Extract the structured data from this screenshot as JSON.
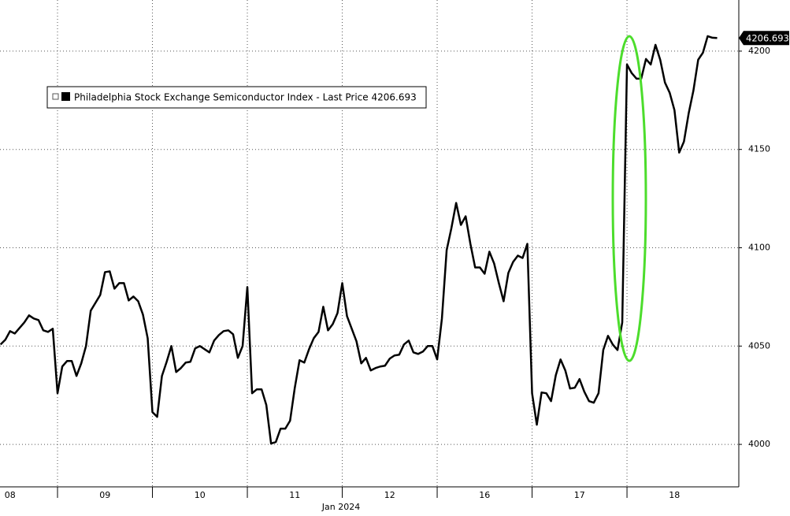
{
  "chart_data": {
    "type": "line",
    "xlabel": "Jan 2024",
    "xlim": [
      0.394,
      8.178
    ],
    "ylim": [
      3978.4,
      4226
    ],
    "xticks": [
      {
        "value": 0.5,
        "label": "08"
      },
      {
        "value": 1.5,
        "label": "09"
      },
      {
        "value": 2.5,
        "label": "10"
      },
      {
        "value": 3.5,
        "label": "11"
      },
      {
        "value": 4.5,
        "label": "12"
      },
      {
        "value": 5.5,
        "label": "16"
      },
      {
        "value": 6.5,
        "label": "17"
      },
      {
        "value": 7.5,
        "label": "18"
      }
    ],
    "xgrid_lines": [
      1,
      2,
      3,
      4,
      5,
      6,
      7
    ],
    "yticks": [
      4000,
      4050,
      4100,
      4150,
      4200
    ],
    "grid": true,
    "legend": "upper left",
    "x": [
      0.4,
      0.45,
      0.5,
      0.55,
      0.6,
      0.65,
      0.7,
      0.75,
      0.8,
      0.85,
      0.9,
      0.95,
      1.0,
      1.05,
      1.1,
      1.15,
      1.2,
      1.25,
      1.3,
      1.35,
      1.4,
      1.45,
      1.5,
      1.55,
      1.6,
      1.65,
      1.7,
      1.75,
      1.8,
      1.85,
      1.9,
      1.95,
      2.0,
      2.05,
      2.1,
      2.15,
      2.2,
      2.25,
      2.3,
      2.35,
      2.4,
      2.45,
      2.5,
      2.55,
      2.6,
      2.65,
      2.7,
      2.75,
      2.8,
      2.85,
      2.9,
      2.95,
      3.0,
      3.05,
      3.1,
      3.15,
      3.2,
      3.25,
      3.3,
      3.35,
      3.4,
      3.45,
      3.5,
      3.55,
      3.6,
      3.65,
      3.7,
      3.75,
      3.8,
      3.85,
      3.9,
      3.95,
      4.0,
      4.05,
      4.1,
      4.15,
      4.2,
      4.25,
      4.3,
      4.35,
      4.4,
      4.45,
      4.5,
      4.55,
      4.6,
      4.65,
      4.7,
      4.75,
      4.8,
      4.85,
      4.9,
      4.95,
      5.0,
      5.05,
      5.1,
      5.15,
      5.2,
      5.25,
      5.3,
      5.35,
      5.4,
      5.45,
      5.5,
      5.55,
      5.6,
      5.65,
      5.7,
      5.75,
      5.8,
      5.85,
      5.9,
      5.95,
      6.0,
      6.05,
      6.1,
      6.15,
      6.2,
      6.25,
      6.3,
      6.35,
      6.4,
      6.45,
      6.5,
      6.55,
      6.6,
      6.65,
      6.7,
      6.75,
      6.8,
      6.85,
      6.9,
      6.95,
      7.0,
      7.05,
      7.1,
      7.15,
      7.2,
      7.25,
      7.3,
      7.35,
      7.4,
      7.45,
      7.5,
      7.55,
      7.6,
      7.65,
      7.7,
      7.75,
      7.8,
      7.85,
      7.9,
      7.95
    ],
    "series": [
      {
        "name": "Philadelphia Stock Exchange Semiconductor Index - Last Price 4206.693",
        "color": "#000000",
        "values": [
          4050.8,
          4053.2,
          4057.6,
          4056.4,
          4059.2,
          4062,
          4065.6,
          4064,
          4063.2,
          4058,
          4057.2,
          4058.8,
          4026,
          4039.6,
          4042.4,
          4042.4,
          4034.8,
          4041.2,
          4050,
          4068,
          4072,
          4076,
          4087.6,
          4088,
          4079.2,
          4082,
          4082,
          4073.2,
          4075.2,
          4072.8,
          4066,
          4054,
          4016.4,
          4014,
          4034.8,
          4042,
          4050,
          4036.8,
          4038.8,
          4041.6,
          4042,
          4048.8,
          4050,
          4048.4,
          4046.8,
          4052.8,
          4055.6,
          4057.6,
          4058,
          4056,
          4044,
          4050,
          4080,
          4026,
          4028,
          4028,
          4020,
          4000.4,
          4001.2,
          4008,
          4008,
          4012,
          4028.8,
          4042.8,
          4041.6,
          4048.4,
          4054,
          4057.2,
          4070,
          4058,
          4061.2,
          4066.8,
          4082,
          4065.2,
          4058.8,
          4052.4,
          4041.2,
          4044,
          4037.6,
          4038.8,
          4039.6,
          4040,
          4043.6,
          4045.2,
          4045.6,
          4050.8,
          4052.8,
          4046.8,
          4046,
          4047.2,
          4050,
          4050,
          4043.2,
          4064,
          4098.8,
          4110,
          4122.8,
          4111.6,
          4116,
          4102,
          4090,
          4090,
          4086.8,
          4098,
          4092,
          4082,
          4072.8,
          4087.2,
          4092.8,
          4096,
          4094.8,
          4102,
          4026,
          4010,
          4026.4,
          4026,
          4022,
          4035.2,
          4043.2,
          4037.6,
          4028.4,
          4028.8,
          4033.2,
          4026.8,
          4022,
          4021.2,
          4026,
          4048,
          4055.2,
          4050.8,
          4048,
          4062,
          4193.2,
          4188.8,
          4186,
          4186,
          4196,
          4193.2,
          4203.2,
          4195.6,
          4184,
          4178.8,
          4170,
          4148.4,
          4154,
          4168.4,
          4180,
          4195.6,
          4199.2,
          4207.6,
          4206.8,
          4206.693
        ]
      }
    ]
  }
}
